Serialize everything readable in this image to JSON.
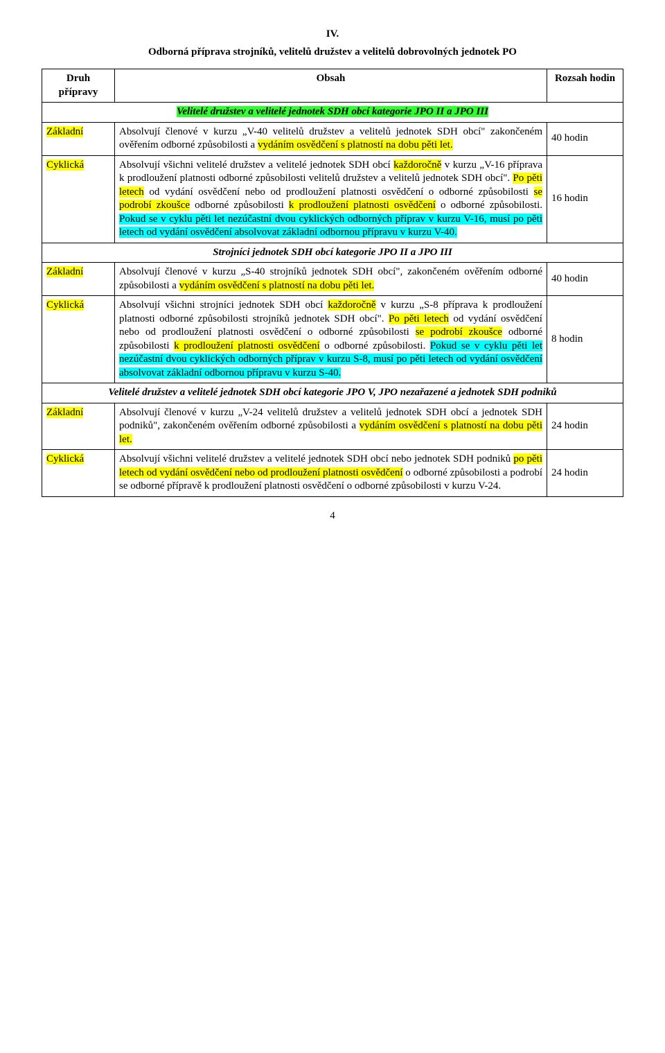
{
  "section_number": "IV.",
  "title": "Odborná příprava strojníků, velitelů družstev a velitelů dobrovolných jednotek PO",
  "headers": {
    "col1": "Druh přípravy",
    "col2": "Obsah",
    "col3": "Rozsah hodin"
  },
  "group1_title": "Velitelé družstev a velitelé jednotek SDH obcí kategorie JPO II a JPO III",
  "g1_r1_type": "Základní",
  "g1_r1_hours": "40 hodin",
  "g1_r1": {
    "p1a": "Absolvují členové v kurzu „V-40 velitelů družstev a velitelů jednotek SDH obcí\" zakončeném ověřením odborné způsobilosti a ",
    "p1b": "vydáním osvědčení s platností na dobu pěti let."
  },
  "g1_r2_type": "Cyklická",
  "g1_r2_hours": "16 hodin",
  "g1_r2": {
    "p1a": "Absolvují všichni velitelé družstev a velitelé jednotek SDH obcí ",
    "p1b": "každoročně",
    "p1c": " v kurzu „V-16 příprava k prodloužení platnosti odborné způsobilosti velitelů družstev a velitelů jednotek SDH obcí\". ",
    "p1d": "Po pěti letech",
    "p1e": " od vydání osvědčení nebo od prodloužení platnosti osvědčení o odborné způsobilosti ",
    "p1f": "se podrobí zkoušce",
    "p1g": " odborné způsobilosti ",
    "p1h": "k prodloužení platnosti osvědčení",
    "p1i": " o odborné způsobilosti. ",
    "p1j": "Pokud se v cyklu pěti let nezúčastní dvou cyklických odborných příprav v kurzu V-16, musí po pěti letech od vydání osvědčení absolvovat základní odbornou přípravu v kurzu V-40."
  },
  "group2_title": "Strojníci jednotek SDH obcí kategorie JPO II a JPO III",
  "g2_r1_type": "Základní",
  "g2_r1_hours": "40 hodin",
  "g2_r1": {
    "p1a": "Absolvují členové v kurzu „S-40 strojníků jednotek SDH obcí\", zakončeném ověřením odborné způsobilosti a ",
    "p1b": "vy",
    "p1c": "dáním osvědčení s platností na dobu pěti let."
  },
  "g2_r2_type": "Cyklická",
  "g2_r2_hours": "8 hodin",
  "g2_r2": {
    "p1a": "Absolvují všichni strojníci jednotek SDH obcí ",
    "p1b": "každoročně",
    "p1c": " v kurzu „S-8 příprava k prodloužení platnosti odborné způsobilosti strojníků jednotek SDH obcí\". ",
    "p1d": "Po pěti letech",
    "p1e": " od vydání osvědčení nebo od prodloužení platnosti osvědčení o odborné způsobilosti ",
    "p1f": "se podrobí zkoušce",
    "p1g": " odborné způsobilosti ",
    "p1h": "k prodloužení platnosti osvědčení",
    "p1i": " o odborné způsobilosti. ",
    "p1j": "Pokud se v cyklu pěti let nezúčastní dvou cyklických odborných příprav v kurzu S-8, musí po pěti letech od vydání osvědčení absolvovat základní odbornou přípravu v kurzu S-40."
  },
  "group3_title": "Velitelé družstev a velitelé jednotek SDH obcí kategorie JPO V, JPO nezařazené a jednotek SDH podniků",
  "g3_r1_type": "Základní",
  "g3_r1_hours": "24 hodin",
  "g3_r1": {
    "p1a": "Absolvují členové v kurzu „V-24 velitelů družstev a velitelů jednotek SDH obcí a jednotek SDH podniků\", zakončeném ověřením odborné způsobilosti a ",
    "p1b": "vydáním osvědčení s platností na dobu pěti let."
  },
  "g3_r2_type": "Cyklická",
  "g3_r2_hours": "24 hodin",
  "g3_r2": {
    "p1a": "Absolvují všichni velitelé družstev a velitelé jednotek SDH obcí nebo jednotek SDH podniků ",
    "p1b": "po pěti letech od vydání osvědčení nebo od prodloužení platnosti osvědčení",
    "p1c": " o odborné způsobilosti a podrobí se odborné přípravě k prodloužení platnosti osvědčení o odborné způsobilosti v kurzu V-24."
  },
  "page_number": "4"
}
